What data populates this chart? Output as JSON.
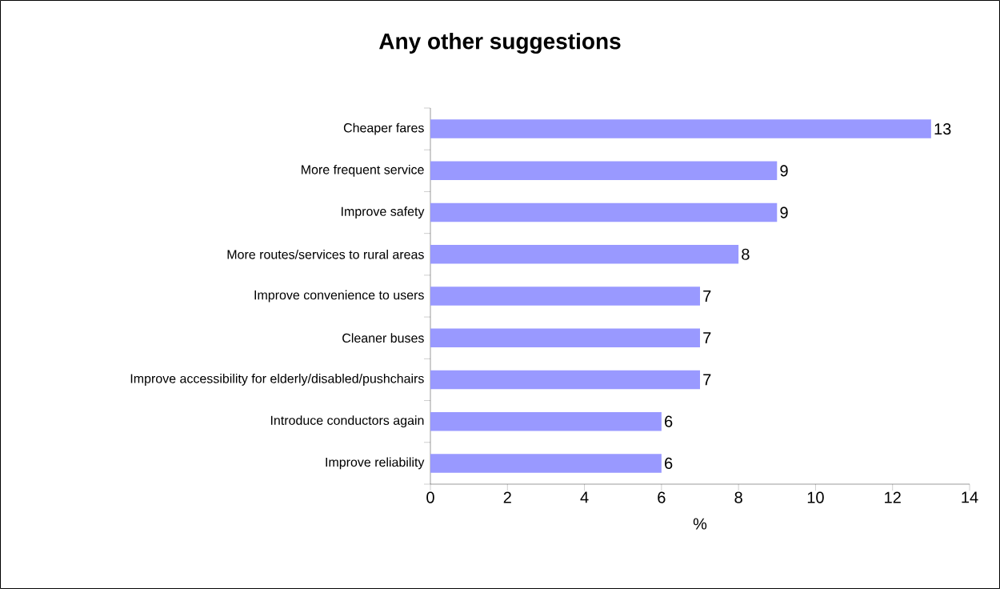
{
  "chart_data": {
    "type": "bar",
    "orientation": "horizontal",
    "title": "Any other suggestions",
    "xlabel": "%",
    "categories": [
      "Cheaper fares",
      "More frequent service",
      "Improve safety",
      "More routes/services to rural areas",
      "Improve convenience to users",
      "Cleaner buses",
      "Improve accessibility for elderly/disabled/pushchairs",
      "Introduce conductors again",
      "Improve reliability"
    ],
    "values": [
      13,
      9,
      9,
      8,
      7,
      7,
      7,
      6,
      6
    ],
    "color": "#9999ff",
    "xlim": [
      0,
      14
    ],
    "xticks": [
      0,
      2,
      4,
      6,
      8,
      10,
      12,
      14
    ],
    "data_labels": true
  }
}
